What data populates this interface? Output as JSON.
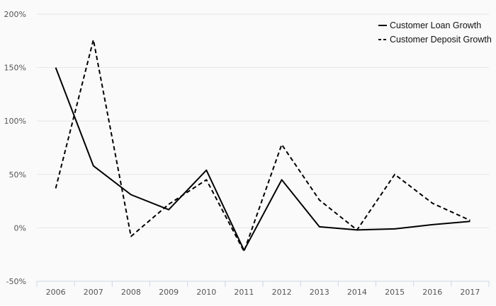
{
  "chart_data": {
    "type": "line",
    "title": "",
    "xlabel": "",
    "ylabel": "",
    "categories": [
      "2006",
      "2007",
      "2008",
      "2009",
      "2010",
      "2011",
      "2012",
      "2013",
      "2014",
      "2015",
      "2016",
      "2017"
    ],
    "y_ticks": [
      "-50%",
      "0%",
      "50%",
      "100%",
      "150%",
      "200%"
    ],
    "ylim": [
      -50,
      200
    ],
    "grid": true,
    "legend_position": "top-right",
    "series": [
      {
        "name": "Customer Loan Growth",
        "style": "solid",
        "color": "#000000",
        "values": [
          150,
          58,
          31,
          17,
          54,
          -21,
          45,
          1,
          -2,
          -1,
          3,
          6
        ]
      },
      {
        "name": "Customer Deposit Growth",
        "style": "dashed",
        "color": "#000000",
        "values": [
          37,
          176,
          -8,
          22,
          45,
          -22,
          78,
          26,
          -2,
          50,
          23,
          7
        ]
      }
    ]
  }
}
